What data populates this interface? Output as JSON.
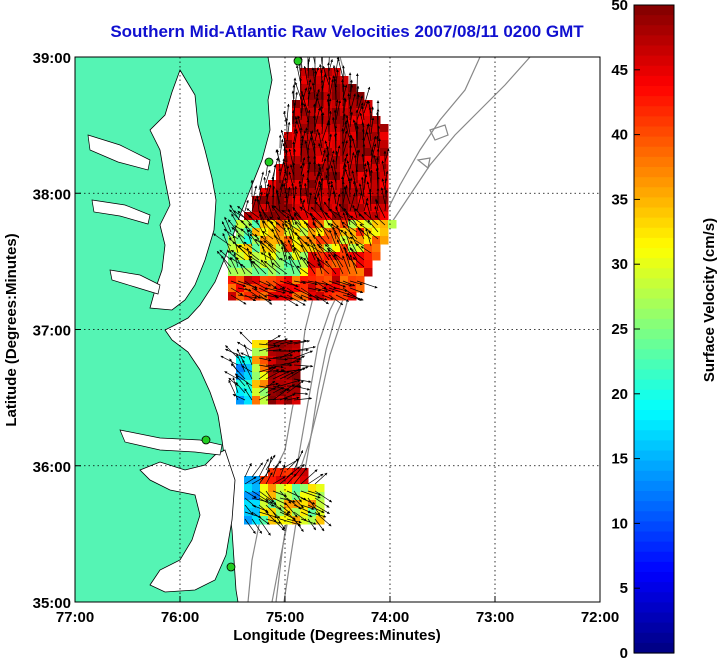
{
  "title": "Southern Mid-Atlantic Raw Velocities 2007/08/11 0200 GMT",
  "xlabel": "Longitude (Degrees:Minutes)",
  "ylabel": "Latitude (Degrees:Minutes)",
  "colorbar": {
    "label": "Surface Velocity (cm/s)",
    "ticks": [
      "50",
      "45",
      "40",
      "35",
      "30",
      "25",
      "20",
      "15",
      "10",
      "5",
      "0"
    ],
    "min": 0,
    "max": 50
  },
  "x_ticks": [
    "77:00",
    "76:00",
    "75:00",
    "74:00",
    "73:00",
    "72:00"
  ],
  "y_ticks": [
    "39:00",
    "38:00",
    "37:00",
    "36:00",
    "35:00"
  ],
  "colors": {
    "land": "#55f4b4",
    "title": "#1010d0",
    "bathymetry": "#888888",
    "station": "#22cc22"
  },
  "chart_data": {
    "type": "heatmap",
    "title": "Southern Mid-Atlantic Raw Velocities 2007/08/11 0200 GMT",
    "xlabel": "Longitude (Degrees:Minutes)",
    "ylabel": "Latitude (Degrees:Minutes)",
    "xlim": [
      -77,
      -72
    ],
    "ylim": [
      35,
      39
    ],
    "grid": true,
    "value_range": [
      0,
      50
    ],
    "regions": [
      {
        "name": "northern",
        "lon_range": [
          -75.5,
          -74.0
        ],
        "lat_range": [
          37.2,
          38.95
        ],
        "typical_speed": [
          20,
          50
        ]
      },
      {
        "name": "central",
        "lon_range": [
          -75.5,
          -74.9
        ],
        "lat_range": [
          36.6,
          36.9
        ],
        "typical_speed": [
          12,
          50
        ]
      },
      {
        "name": "southern",
        "lon_range": [
          -75.6,
          -74.7
        ],
        "lat_range": [
          35.6,
          36.2
        ],
        "typical_speed": [
          12,
          45
        ]
      }
    ]
  }
}
